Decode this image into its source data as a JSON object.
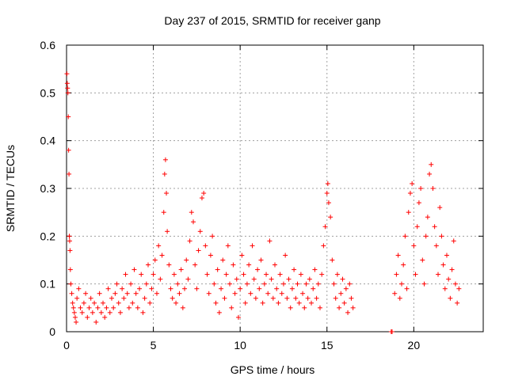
{
  "chart_data": {
    "type": "scatter",
    "title": "Day 237 of 2015, SRMTID for receiver ganp",
    "xlabel": "GPS time / hours",
    "ylabel": "SRMTID / TECUs",
    "xlim": [
      0,
      24
    ],
    "ylim": [
      0,
      0.6
    ],
    "x_ticks": [
      0,
      5,
      10,
      15,
      20
    ],
    "y_ticks": [
      0,
      0.1,
      0.2,
      0.3,
      0.4,
      0.5,
      0.6
    ],
    "x_tick_labels": [
      "0",
      "5",
      "10",
      "15",
      "20"
    ],
    "y_tick_labels": [
      "0",
      "0.1",
      "0.2",
      "0.3",
      "0.4",
      "0.5",
      "0.6"
    ],
    "grid": true,
    "marker": "+",
    "color": "#ff0000",
    "series": [
      {
        "name": "SRMTID",
        "points": [
          [
            0.02,
            0.54
          ],
          [
            0.04,
            0.52
          ],
          [
            0.06,
            0.51
          ],
          [
            0.08,
            0.5
          ],
          [
            0.1,
            0.45
          ],
          [
            0.12,
            0.38
          ],
          [
            0.14,
            0.33
          ],
          [
            0.16,
            0.2
          ],
          [
            0.18,
            0.19
          ],
          [
            0.2,
            0.17
          ],
          [
            0.22,
            0.13
          ],
          [
            0.25,
            0.1
          ],
          [
            0.3,
            0.08
          ],
          [
            0.35,
            0.06
          ],
          [
            0.4,
            0.05
          ],
          [
            0.45,
            0.04
          ],
          [
            0.5,
            0.03
          ],
          [
            0.55,
            0.02
          ],
          [
            0.6,
            0.07
          ],
          [
            0.7,
            0.09
          ],
          [
            0.8,
            0.05
          ],
          [
            0.9,
            0.04
          ],
          [
            1.0,
            0.06
          ],
          [
            1.1,
            0.08
          ],
          [
            1.2,
            0.03
          ],
          [
            1.3,
            0.05
          ],
          [
            1.4,
            0.07
          ],
          [
            1.5,
            0.04
          ],
          [
            1.6,
            0.06
          ],
          [
            1.7,
            0.02
          ],
          [
            1.8,
            0.05
          ],
          [
            1.9,
            0.08
          ],
          [
            2.0,
            0.04
          ],
          [
            2.1,
            0.06
          ],
          [
            2.2,
            0.03
          ],
          [
            2.3,
            0.05
          ],
          [
            2.4,
            0.09
          ],
          [
            2.5,
            0.04
          ],
          [
            2.6,
            0.07
          ],
          [
            2.7,
            0.05
          ],
          [
            2.8,
            0.08
          ],
          [
            2.9,
            0.1
          ],
          [
            3.0,
            0.06
          ],
          [
            3.1,
            0.04
          ],
          [
            3.2,
            0.09
          ],
          [
            3.3,
            0.07
          ],
          [
            3.4,
            0.12
          ],
          [
            3.5,
            0.08
          ],
          [
            3.6,
            0.05
          ],
          [
            3.7,
            0.1
          ],
          [
            3.8,
            0.06
          ],
          [
            3.9,
            0.13
          ],
          [
            4.0,
            0.08
          ],
          [
            4.1,
            0.05
          ],
          [
            4.2,
            0.09
          ],
          [
            4.3,
            0.12
          ],
          [
            4.4,
            0.04
          ],
          [
            4.5,
            0.07
          ],
          [
            4.6,
            0.1
          ],
          [
            4.7,
            0.14
          ],
          [
            4.8,
            0.06
          ],
          [
            4.9,
            0.09
          ],
          [
            5.0,
            0.12
          ],
          [
            5.1,
            0.15
          ],
          [
            5.2,
            0.08
          ],
          [
            5.3,
            0.18
          ],
          [
            5.4,
            0.11
          ],
          [
            5.5,
            0.16
          ],
          [
            5.6,
            0.25
          ],
          [
            5.65,
            0.33
          ],
          [
            5.7,
            0.36
          ],
          [
            5.75,
            0.29
          ],
          [
            5.8,
            0.21
          ],
          [
            5.9,
            0.14
          ],
          [
            6.0,
            0.09
          ],
          [
            6.1,
            0.07
          ],
          [
            6.2,
            0.12
          ],
          [
            6.3,
            0.06
          ],
          [
            6.4,
            0.1
          ],
          [
            6.5,
            0.08
          ],
          [
            6.6,
            0.13
          ],
          [
            6.7,
            0.05
          ],
          [
            6.8,
            0.09
          ],
          [
            6.9,
            0.15
          ],
          [
            7.0,
            0.11
          ],
          [
            7.1,
            0.19
          ],
          [
            7.2,
            0.25
          ],
          [
            7.3,
            0.23
          ],
          [
            7.4,
            0.14
          ],
          [
            7.5,
            0.09
          ],
          [
            7.6,
            0.17
          ],
          [
            7.7,
            0.21
          ],
          [
            7.8,
            0.28
          ],
          [
            7.9,
            0.29
          ],
          [
            8.0,
            0.18
          ],
          [
            8.1,
            0.12
          ],
          [
            8.2,
            0.08
          ],
          [
            8.3,
            0.16
          ],
          [
            8.4,
            0.2
          ],
          [
            8.5,
            0.1
          ],
          [
            8.6,
            0.06
          ],
          [
            8.7,
            0.13
          ],
          [
            8.8,
            0.04
          ],
          [
            8.9,
            0.09
          ],
          [
            9.0,
            0.15
          ],
          [
            9.1,
            0.07
          ],
          [
            9.2,
            0.12
          ],
          [
            9.3,
            0.18
          ],
          [
            9.4,
            0.1
          ],
          [
            9.5,
            0.05
          ],
          [
            9.6,
            0.14
          ],
          [
            9.7,
            0.08
          ],
          [
            9.8,
            0.11
          ],
          [
            9.9,
            0.03
          ],
          [
            10.0,
            0.09
          ],
          [
            10.1,
            0.16
          ],
          [
            10.2,
            0.12
          ],
          [
            10.3,
            0.06
          ],
          [
            10.4,
            0.1
          ],
          [
            10.5,
            0.14
          ],
          [
            10.6,
            0.08
          ],
          [
            10.7,
            0.18
          ],
          [
            10.8,
            0.11
          ],
          [
            10.9,
            0.07
          ],
          [
            11.0,
            0.13
          ],
          [
            11.1,
            0.09
          ],
          [
            11.2,
            0.15
          ],
          [
            11.3,
            0.06
          ],
          [
            11.4,
            0.1
          ],
          [
            11.5,
            0.12
          ],
          [
            11.6,
            0.08
          ],
          [
            11.7,
            0.19
          ],
          [
            11.8,
            0.11
          ],
          [
            11.9,
            0.07
          ],
          [
            12.0,
            0.14
          ],
          [
            12.1,
            0.09
          ],
          [
            12.2,
            0.06
          ],
          [
            12.3,
            0.12
          ],
          [
            12.4,
            0.08
          ],
          [
            12.5,
            0.1
          ],
          [
            12.6,
            0.16
          ],
          [
            12.7,
            0.07
          ],
          [
            12.8,
            0.11
          ],
          [
            12.9,
            0.05
          ],
          [
            13.0,
            0.09
          ],
          [
            13.1,
            0.13
          ],
          [
            13.2,
            0.07
          ],
          [
            13.3,
            0.1
          ],
          [
            13.4,
            0.06
          ],
          [
            13.5,
            0.12
          ],
          [
            13.6,
            0.08
          ],
          [
            13.7,
            0.05
          ],
          [
            13.8,
            0.1
          ],
          [
            13.9,
            0.07
          ],
          [
            14.0,
            0.11
          ],
          [
            14.1,
            0.06
          ],
          [
            14.2,
            0.09
          ],
          [
            14.3,
            0.13
          ],
          [
            14.4,
            0.07
          ],
          [
            14.5,
            0.1
          ],
          [
            14.6,
            0.05
          ],
          [
            14.7,
            0.12
          ],
          [
            14.8,
            0.18
          ],
          [
            14.9,
            0.22
          ],
          [
            15.0,
            0.29
          ],
          [
            15.05,
            0.31
          ],
          [
            15.1,
            0.27
          ],
          [
            15.2,
            0.24
          ],
          [
            15.3,
            0.15
          ],
          [
            15.4,
            0.1
          ],
          [
            15.5,
            0.07
          ],
          [
            15.6,
            0.12
          ],
          [
            15.7,
            0.05
          ],
          [
            15.8,
            0.08
          ],
          [
            15.9,
            0.11
          ],
          [
            16.0,
            0.06
          ],
          [
            16.1,
            0.09
          ],
          [
            16.2,
            0.04
          ],
          [
            16.3,
            0.1
          ],
          [
            16.4,
            0.07
          ],
          [
            16.5,
            0.05
          ],
          [
            18.7,
            0.0
          ],
          [
            18.75,
            0.0
          ],
          [
            18.9,
            0.08
          ],
          [
            19.0,
            0.12
          ],
          [
            19.1,
            0.16
          ],
          [
            19.2,
            0.07
          ],
          [
            19.3,
            0.1
          ],
          [
            19.4,
            0.14
          ],
          [
            19.5,
            0.2
          ],
          [
            19.6,
            0.09
          ],
          [
            19.7,
            0.25
          ],
          [
            19.8,
            0.29
          ],
          [
            19.9,
            0.31
          ],
          [
            20.0,
            0.18
          ],
          [
            20.1,
            0.12
          ],
          [
            20.2,
            0.22
          ],
          [
            20.3,
            0.27
          ],
          [
            20.4,
            0.3
          ],
          [
            20.5,
            0.15
          ],
          [
            20.6,
            0.1
          ],
          [
            20.7,
            0.2
          ],
          [
            20.8,
            0.24
          ],
          [
            20.9,
            0.33
          ],
          [
            21.0,
            0.35
          ],
          [
            21.1,
            0.3
          ],
          [
            21.2,
            0.22
          ],
          [
            21.3,
            0.18
          ],
          [
            21.4,
            0.12
          ],
          [
            21.5,
            0.26
          ],
          [
            21.6,
            0.2
          ],
          [
            21.7,
            0.14
          ],
          [
            21.8,
            0.09
          ],
          [
            21.9,
            0.16
          ],
          [
            22.0,
            0.11
          ],
          [
            22.1,
            0.07
          ],
          [
            22.2,
            0.13
          ],
          [
            22.3,
            0.19
          ],
          [
            22.4,
            0.1
          ],
          [
            22.5,
            0.06
          ],
          [
            22.6,
            0.09
          ]
        ]
      }
    ]
  }
}
